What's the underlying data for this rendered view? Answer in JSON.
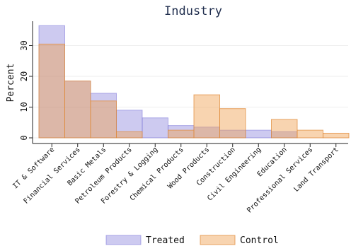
{
  "chart_data": {
    "type": "bar",
    "title": "Industry",
    "xlabel": "",
    "ylabel": "Percent",
    "ylim": [
      0,
      39
    ],
    "yticks": [
      0,
      10,
      20,
      30
    ],
    "grid": true,
    "legend_position": "bottom",
    "categories": [
      "IT & Software",
      "Financial Services",
      "Basic Metals",
      "Petroleum Products",
      "Forestry & Logging",
      "Chemical Products",
      "Wood Products",
      "Construction",
      "Civil Engineering",
      "Education",
      "Professional Services",
      "Land Transport"
    ],
    "series": [
      {
        "name": "Treated",
        "color": "#7b74d8",
        "values": [
          36.5,
          18.5,
          14.5,
          9.0,
          6.5,
          4.0,
          3.5,
          2.5,
          2.5,
          2.0,
          0,
          0
        ]
      },
      {
        "name": "Control",
        "color": "#f0b060",
        "values": [
          30.5,
          18.5,
          12.0,
          2.0,
          0,
          2.5,
          14.0,
          9.5,
          0,
          6.0,
          2.5,
          1.5
        ]
      }
    ]
  }
}
